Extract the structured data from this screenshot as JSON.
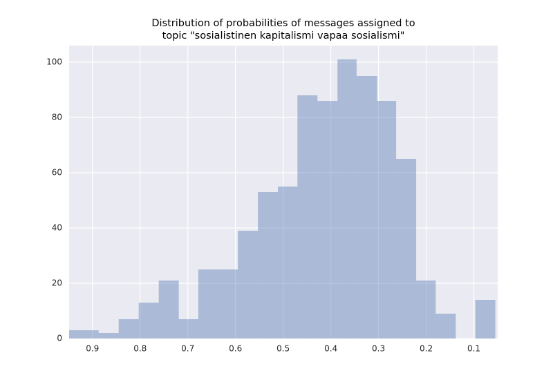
{
  "chart_data": {
    "type": "histogram",
    "title": [
      "Distribution of probabilities of messages assigned to",
      "topic \"sosialistinen kapitalismi vapaa sosialismi\""
    ],
    "bins": [
      0.949,
      0.887,
      0.845,
      0.803,
      0.761,
      0.719,
      0.678,
      0.636,
      0.595,
      0.553,
      0.511,
      0.47,
      0.428,
      0.386,
      0.346,
      0.303,
      0.263,
      0.221,
      0.18,
      0.138,
      0.097,
      0.055
    ],
    "values": [
      3,
      2,
      7,
      13,
      21,
      7,
      25,
      25,
      39,
      53,
      55,
      88,
      86,
      101,
      95,
      86,
      65,
      21,
      9,
      0,
      14
    ],
    "color": "#4c72b0",
    "opacity": 0.4,
    "background": "#eaeaf2",
    "xlim": [
      0.949,
      0.05
    ],
    "xticks": [
      0.9,
      0.8,
      0.7,
      0.6,
      0.5,
      0.4,
      0.3,
      0.2,
      0.1
    ],
    "ylim": [
      0,
      106
    ],
    "yticks": [
      0,
      20,
      40,
      60,
      80,
      100
    ],
    "grid": true
  }
}
